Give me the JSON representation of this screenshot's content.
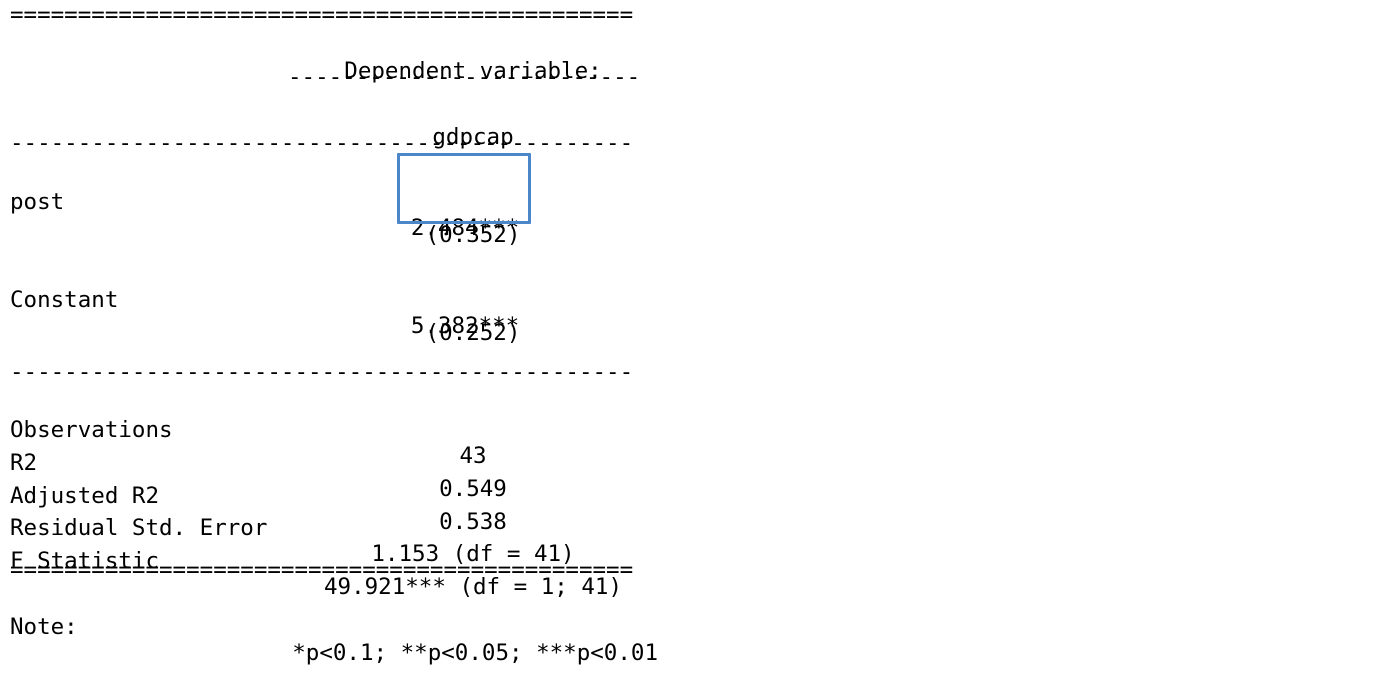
{
  "rules": {
    "double": "==============================================",
    "single": "----------------------------------------------",
    "partial": "--------------------------"
  },
  "header": {
    "dependent_variable_label": "Dependent variable:",
    "dependent_variable": "gdpcap"
  },
  "coefficients": [
    {
      "name": "post",
      "estimate": "2.484***",
      "std_error": "(0.352)",
      "highlighted": true
    },
    {
      "name": "Constant",
      "estimate": "5.382***",
      "std_error": "(0.252)",
      "highlighted": false
    }
  ],
  "stats": [
    {
      "name": "Observations",
      "value": "43"
    },
    {
      "name": "R2",
      "value": "0.549"
    },
    {
      "name": "Adjusted R2",
      "value": "0.538"
    },
    {
      "name": "Residual Std. Error",
      "value": "1.153 (df = 41)"
    },
    {
      "name": "F Statistic",
      "value": "49.921*** (df = 1; 41)"
    }
  ],
  "note": {
    "label": "Note:",
    "text": "*p<0.1; **p<0.05; ***p<0.01"
  },
  "highlight_color": "#4a86c8"
}
